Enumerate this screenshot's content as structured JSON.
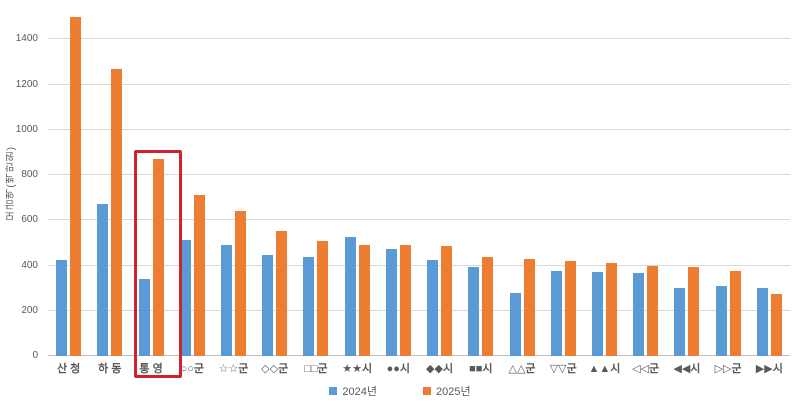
{
  "colors": {
    "series_2024": "#5B9BD5",
    "series_2025": "#ED7D31",
    "gridline": "#d9d9d9",
    "axis_line": "#bfbfbf",
    "text": "#595959",
    "highlight_border": "#cf2430",
    "background": "#ffffff"
  },
  "chart_data": {
    "type": "bar",
    "title": "",
    "xlabel": "",
    "ylabel": "모금액(백만원)",
    "ylim": [
      0,
      1530
    ],
    "yticks": [
      0,
      200,
      400,
      600,
      800,
      1000,
      1200,
      1400
    ],
    "grid": true,
    "legend_position": "bottom-center",
    "categories": [
      "산 청",
      "하 동",
      "통 영",
      "○○군",
      "☆☆군",
      "◇◇군",
      "□□군",
      "★★시",
      "●●시",
      "◆◆시",
      "■■시",
      "△△군",
      "▽▽군",
      "▲▲시",
      "◁◁군",
      "◀◀시",
      "▷▷군",
      "▶▶시"
    ],
    "series": [
      {
        "name": "2024년",
        "color": "#5B9BD5",
        "values": [
          425,
          670,
          340,
          515,
          490,
          445,
          440,
          525,
          475,
          425,
          395,
          280,
          375,
          370,
          365,
          300,
          310,
          300
        ]
      },
      {
        "name": "2025년",
        "color": "#ED7D31",
        "values": [
          1500,
          1270,
          870,
          710,
          640,
          555,
          510,
          490,
          490,
          485,
          440,
          430,
          420,
          410,
          400,
          395,
          375,
          275
        ]
      }
    ],
    "highlight": {
      "category": "통 영",
      "border_color": "#cf2430",
      "note": "red box around highlighted category"
    }
  }
}
